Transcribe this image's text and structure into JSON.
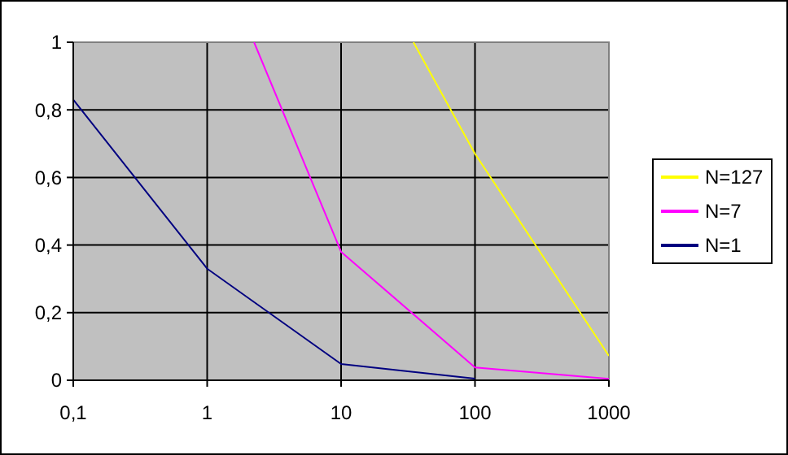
{
  "chart_data": {
    "type": "line",
    "log": "x",
    "grid": true,
    "legend": "right",
    "xlim": [
      0.1,
      1000
    ],
    "ylim": [
      0,
      1
    ],
    "xticks": [
      {
        "value": 0.1,
        "label": "0,1"
      },
      1,
      10,
      100,
      1000
    ],
    "yticks": [
      0,
      {
        "value": 0.2,
        "label": "0,2"
      },
      {
        "value": 0.4,
        "label": "0,4"
      },
      {
        "value": 0.6,
        "label": "0,6"
      },
      {
        "value": 0.8,
        "label": "0,8"
      },
      1
    ],
    "series": [
      {
        "name": "N=127",
        "color": "#ffff00",
        "x": [
          34.7,
          100,
          1000
        ],
        "values": [
          1,
          0.67,
          0.072
        ]
      },
      {
        "name": "N=7",
        "color": "#ff00ff",
        "x": [
          2.24,
          10,
          100,
          1000
        ],
        "values": [
          1,
          0.38,
          0.038,
          0.004
        ]
      },
      {
        "name": "N=1",
        "color": "#000080",
        "x": [
          0.1,
          1,
          10,
          100
        ],
        "values": [
          0.83,
          0.33,
          0.048,
          0.005
        ]
      }
    ]
  }
}
